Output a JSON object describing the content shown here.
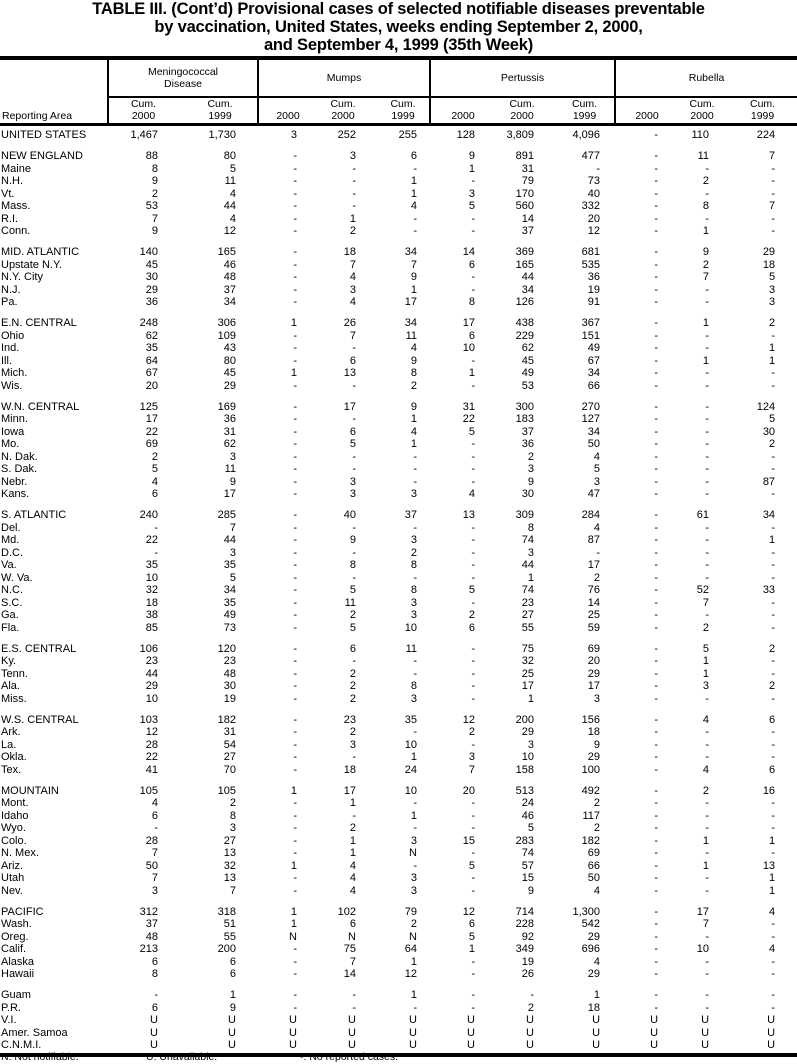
{
  "title": {
    "line1": "TABLE III. (Cont’d) Provisional cases of selected notifiable diseases preventable",
    "line2": "by vaccination, United States, weeks ending September 2, 2000,",
    "line3": "and September 4, 1999 (35th Week)"
  },
  "header": {
    "reporting_area": "Reporting Area",
    "groups": [
      "Meningococcal Disease",
      "Mumps",
      "Pertussis",
      "Rubella"
    ],
    "columns": [
      "Cum. 2000",
      "Cum. 1999",
      "2000",
      "Cum. 2000",
      "Cum. 1999",
      "2000",
      "Cum. 2000",
      "Cum. 1999",
      "2000",
      "Cum. 2000",
      "Cum. 1999"
    ]
  },
  "sections": [
    [
      [
        "UNITED STATES",
        "1,467",
        "1,730",
        "3",
        "252",
        "255",
        "128",
        "3,809",
        "4,096",
        "-",
        "110",
        "224"
      ]
    ],
    [
      [
        "NEW ENGLAND",
        "88",
        "80",
        "-",
        "3",
        "6",
        "9",
        "891",
        "477",
        "-",
        "11",
        "7"
      ],
      [
        "Maine",
        "8",
        "5",
        "-",
        "-",
        "-",
        "1",
        "31",
        "-",
        "-",
        "-",
        "-"
      ],
      [
        "N.H.",
        "9",
        "11",
        "-",
        "-",
        "1",
        "-",
        "79",
        "73",
        "-",
        "2",
        "-"
      ],
      [
        "Vt.",
        "2",
        "4",
        "-",
        "-",
        "1",
        "3",
        "170",
        "40",
        "-",
        "-",
        "-"
      ],
      [
        "Mass.",
        "53",
        "44",
        "-",
        "-",
        "4",
        "5",
        "560",
        "332",
        "-",
        "8",
        "7"
      ],
      [
        "R.I.",
        "7",
        "4",
        "-",
        "1",
        "-",
        "-",
        "14",
        "20",
        "-",
        "-",
        "-"
      ],
      [
        "Conn.",
        "9",
        "12",
        "-",
        "2",
        "-",
        "-",
        "37",
        "12",
        "-",
        "1",
        "-"
      ]
    ],
    [
      [
        "MID. ATLANTIC",
        "140",
        "165",
        "-",
        "18",
        "34",
        "14",
        "369",
        "681",
        "-",
        "9",
        "29"
      ],
      [
        "Upstate N.Y.",
        "45",
        "46",
        "-",
        "7",
        "7",
        "6",
        "165",
        "535",
        "-",
        "2",
        "18"
      ],
      [
        "N.Y. City",
        "30",
        "48",
        "-",
        "4",
        "9",
        "-",
        "44",
        "36",
        "-",
        "7",
        "5"
      ],
      [
        "N.J.",
        "29",
        "37",
        "-",
        "3",
        "1",
        "-",
        "34",
        "19",
        "-",
        "-",
        "3"
      ],
      [
        "Pa.",
        "36",
        "34",
        "-",
        "4",
        "17",
        "8",
        "126",
        "91",
        "-",
        "-",
        "3"
      ]
    ],
    [
      [
        "E.N. CENTRAL",
        "248",
        "306",
        "1",
        "26",
        "34",
        "17",
        "438",
        "367",
        "-",
        "1",
        "2"
      ],
      [
        "Ohio",
        "62",
        "109",
        "-",
        "7",
        "11",
        "6",
        "229",
        "151",
        "-",
        "-",
        "-"
      ],
      [
        "Ind.",
        "35",
        "43",
        "-",
        "-",
        "4",
        "10",
        "62",
        "49",
        "-",
        "-",
        "1"
      ],
      [
        "Ill.",
        "64",
        "80",
        "-",
        "6",
        "9",
        "-",
        "45",
        "67",
        "-",
        "1",
        "1"
      ],
      [
        "Mich.",
        "67",
        "45",
        "1",
        "13",
        "8",
        "1",
        "49",
        "34",
        "-",
        "-",
        "-"
      ],
      [
        "Wis.",
        "20",
        "29",
        "-",
        "-",
        "2",
        "-",
        "53",
        "66",
        "-",
        "-",
        "-"
      ]
    ],
    [
      [
        "W.N. CENTRAL",
        "125",
        "169",
        "-",
        "17",
        "9",
        "31",
        "300",
        "270",
        "-",
        "-",
        "124"
      ],
      [
        "Minn.",
        "17",
        "36",
        "-",
        "-",
        "1",
        "22",
        "183",
        "127",
        "-",
        "-",
        "5"
      ],
      [
        "Iowa",
        "22",
        "31",
        "-",
        "6",
        "4",
        "5",
        "37",
        "34",
        "-",
        "-",
        "30"
      ],
      [
        "Mo.",
        "69",
        "62",
        "-",
        "5",
        "1",
        "-",
        "36",
        "50",
        "-",
        "-",
        "2"
      ],
      [
        "N. Dak.",
        "2",
        "3",
        "-",
        "-",
        "-",
        "-",
        "2",
        "4",
        "-",
        "-",
        "-"
      ],
      [
        "S. Dak.",
        "5",
        "11",
        "-",
        "-",
        "-",
        "-",
        "3",
        "5",
        "-",
        "-",
        "-"
      ],
      [
        "Nebr.",
        "4",
        "9",
        "-",
        "3",
        "-",
        "-",
        "9",
        "3",
        "-",
        "-",
        "87"
      ],
      [
        "Kans.",
        "6",
        "17",
        "-",
        "3",
        "3",
        "4",
        "30",
        "47",
        "-",
        "-",
        "-"
      ]
    ],
    [
      [
        "S. ATLANTIC",
        "240",
        "285",
        "-",
        "40",
        "37",
        "13",
        "309",
        "284",
        "-",
        "61",
        "34"
      ],
      [
        "Del.",
        "-",
        "7",
        "-",
        "-",
        "-",
        "-",
        "8",
        "4",
        "-",
        "-",
        "-"
      ],
      [
        "Md.",
        "22",
        "44",
        "-",
        "9",
        "3",
        "-",
        "74",
        "87",
        "-",
        "-",
        "1"
      ],
      [
        "D.C.",
        "-",
        "3",
        "-",
        "-",
        "2",
        "-",
        "3",
        "-",
        "-",
        "-",
        "-"
      ],
      [
        "Va.",
        "35",
        "35",
        "-",
        "8",
        "8",
        "-",
        "44",
        "17",
        "-",
        "-",
        "-"
      ],
      [
        "W. Va.",
        "10",
        "5",
        "-",
        "-",
        "-",
        "-",
        "1",
        "2",
        "-",
        "-",
        "-"
      ],
      [
        "N.C.",
        "32",
        "34",
        "-",
        "5",
        "8",
        "5",
        "74",
        "76",
        "-",
        "52",
        "33"
      ],
      [
        "S.C.",
        "18",
        "35",
        "-",
        "11",
        "3",
        "-",
        "23",
        "14",
        "-",
        "7",
        "-"
      ],
      [
        "Ga.",
        "38",
        "49",
        "-",
        "2",
        "3",
        "2",
        "27",
        "25",
        "-",
        "-",
        "-"
      ],
      [
        "Fla.",
        "85",
        "73",
        "-",
        "5",
        "10",
        "6",
        "55",
        "59",
        "-",
        "2",
        "-"
      ]
    ],
    [
      [
        "E.S. CENTRAL",
        "106",
        "120",
        "-",
        "6",
        "11",
        "-",
        "75",
        "69",
        "-",
        "5",
        "2"
      ],
      [
        "Ky.",
        "23",
        "23",
        "-",
        "-",
        "-",
        "-",
        "32",
        "20",
        "-",
        "1",
        "-"
      ],
      [
        "Tenn.",
        "44",
        "48",
        "-",
        "2",
        "-",
        "-",
        "25",
        "29",
        "-",
        "1",
        "-"
      ],
      [
        "Ala.",
        "29",
        "30",
        "-",
        "2",
        "8",
        "-",
        "17",
        "17",
        "-",
        "3",
        "2"
      ],
      [
        "Miss.",
        "10",
        "19",
        "-",
        "2",
        "3",
        "-",
        "1",
        "3",
        "-",
        "-",
        "-"
      ]
    ],
    [
      [
        "W.S. CENTRAL",
        "103",
        "182",
        "-",
        "23",
        "35",
        "12",
        "200",
        "156",
        "-",
        "4",
        "6"
      ],
      [
        "Ark.",
        "12",
        "31",
        "-",
        "2",
        "-",
        "2",
        "29",
        "18",
        "-",
        "-",
        "-"
      ],
      [
        "La.",
        "28",
        "54",
        "-",
        "3",
        "10",
        "-",
        "3",
        "9",
        "-",
        "-",
        "-"
      ],
      [
        "Okla.",
        "22",
        "27",
        "-",
        "-",
        "1",
        "3",
        "10",
        "29",
        "-",
        "-",
        "-"
      ],
      [
        "Tex.",
        "41",
        "70",
        "-",
        "18",
        "24",
        "7",
        "158",
        "100",
        "-",
        "4",
        "6"
      ]
    ],
    [
      [
        "MOUNTAIN",
        "105",
        "105",
        "1",
        "17",
        "10",
        "20",
        "513",
        "492",
        "-",
        "2",
        "16"
      ],
      [
        "Mont.",
        "4",
        "2",
        "-",
        "1",
        "-",
        "-",
        "24",
        "2",
        "-",
        "-",
        "-"
      ],
      [
        "Idaho",
        "6",
        "8",
        "-",
        "-",
        "1",
        "-",
        "46",
        "117",
        "-",
        "-",
        "-"
      ],
      [
        "Wyo.",
        "-",
        "3",
        "-",
        "2",
        "-",
        "-",
        "5",
        "2",
        "-",
        "-",
        "-"
      ],
      [
        "Colo.",
        "28",
        "27",
        "-",
        "1",
        "3",
        "15",
        "283",
        "182",
        "-",
        "1",
        "1"
      ],
      [
        "N. Mex.",
        "7",
        "13",
        "-",
        "1",
        "N",
        "-",
        "74",
        "69",
        "-",
        "-",
        "-"
      ],
      [
        "Ariz.",
        "50",
        "32",
        "1",
        "4",
        "-",
        "5",
        "57",
        "66",
        "-",
        "1",
        "13"
      ],
      [
        "Utah",
        "7",
        "13",
        "-",
        "4",
        "3",
        "-",
        "15",
        "50",
        "-",
        "-",
        "1"
      ],
      [
        "Nev.",
        "3",
        "7",
        "-",
        "4",
        "3",
        "-",
        "9",
        "4",
        "-",
        "-",
        "1"
      ]
    ],
    [
      [
        "PACIFIC",
        "312",
        "318",
        "1",
        "102",
        "79",
        "12",
        "714",
        "1,300",
        "-",
        "17",
        "4"
      ],
      [
        "Wash.",
        "37",
        "51",
        "1",
        "6",
        "2",
        "6",
        "228",
        "542",
        "-",
        "7",
        "-"
      ],
      [
        "Oreg.",
        "48",
        "55",
        "N",
        "N",
        "N",
        "5",
        "92",
        "29",
        "-",
        "-",
        "-"
      ],
      [
        "Calif.",
        "213",
        "200",
        "-",
        "75",
        "64",
        "1",
        "349",
        "696",
        "-",
        "10",
        "4"
      ],
      [
        "Alaska",
        "6",
        "6",
        "-",
        "7",
        "1",
        "-",
        "19",
        "4",
        "-",
        "-",
        "-"
      ],
      [
        "Hawaii",
        "8",
        "6",
        "-",
        "14",
        "12",
        "-",
        "26",
        "29",
        "-",
        "-",
        "-"
      ]
    ],
    [
      [
        "Guam",
        "-",
        "1",
        "-",
        "-",
        "1",
        "-",
        "-",
        "1",
        "-",
        "-",
        "-"
      ],
      [
        "P.R.",
        "6",
        "9",
        "-",
        "-",
        "-",
        "-",
        "2",
        "18",
        "-",
        "-",
        "-"
      ],
      [
        "V.I.",
        "U",
        "U",
        "U",
        "U",
        "U",
        "U",
        "U",
        "U",
        "U",
        "U",
        "U"
      ],
      [
        "Amer. Samoa",
        "U",
        "U",
        "U",
        "U",
        "U",
        "U",
        "U",
        "U",
        "U",
        "U",
        "U"
      ],
      [
        "C.N.M.I.",
        "U",
        "U",
        "U",
        "U",
        "U",
        "U",
        "U",
        "U",
        "U",
        "U",
        "U"
      ]
    ]
  ],
  "footnotes": [
    "N: Not notifiable.",
    "U: Unavailable.",
    "-: No reported cases."
  ]
}
